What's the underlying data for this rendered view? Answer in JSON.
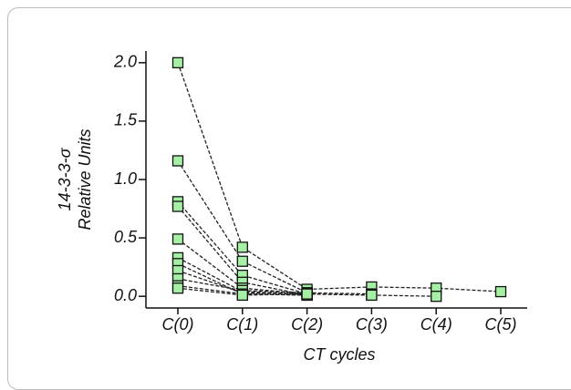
{
  "chart_data": {
    "type": "line",
    "y_label_lines": [
      "14-3-3-σ",
      "Relative Units"
    ],
    "x_label": "CT cycles",
    "categories": [
      "C(0)",
      "C(1)",
      "C(2)",
      "C(3)",
      "C(4)",
      "C(5)"
    ],
    "series": [
      {
        "values": [
          2.0,
          0.42,
          0.06,
          0.08,
          0.07,
          0.04
        ]
      },
      {
        "values": [
          1.16,
          0.3,
          0.03,
          0.02,
          null,
          null
        ]
      },
      {
        "values": [
          0.81,
          0.18,
          0.02,
          0.01,
          null,
          null
        ]
      },
      {
        "values": [
          0.77,
          0.12,
          0.01,
          null,
          null,
          null
        ]
      },
      {
        "values": [
          0.49,
          0.07,
          0.02,
          null,
          null,
          null
        ]
      },
      {
        "values": [
          0.33,
          0.04,
          0.02,
          0.01,
          0.0,
          null
        ]
      },
      {
        "values": [
          0.28,
          0.02,
          0.01,
          null,
          null,
          null
        ]
      },
      {
        "values": [
          0.22,
          0.03,
          0.02,
          null,
          null,
          null
        ]
      },
      {
        "values": [
          0.15,
          0.05,
          0.03,
          null,
          null,
          null
        ]
      },
      {
        "values": [
          0.09,
          0.02,
          0.01,
          null,
          null,
          null
        ]
      },
      {
        "values": [
          0.07,
          0.01,
          0.02,
          null,
          null,
          null
        ]
      }
    ],
    "color": "#a6f0a6",
    "line_color": "#222",
    "ylim": [
      -0.1,
      2.1
    ],
    "yticks": [
      {
        "value": 0,
        "label": "0.0"
      },
      {
        "value": 0.5,
        "label": "0.5"
      },
      {
        "value": 1,
        "label": "1.0"
      },
      {
        "value": 1.5,
        "label": "1.5"
      },
      {
        "value": 2,
        "label": "2.0"
      }
    ]
  }
}
